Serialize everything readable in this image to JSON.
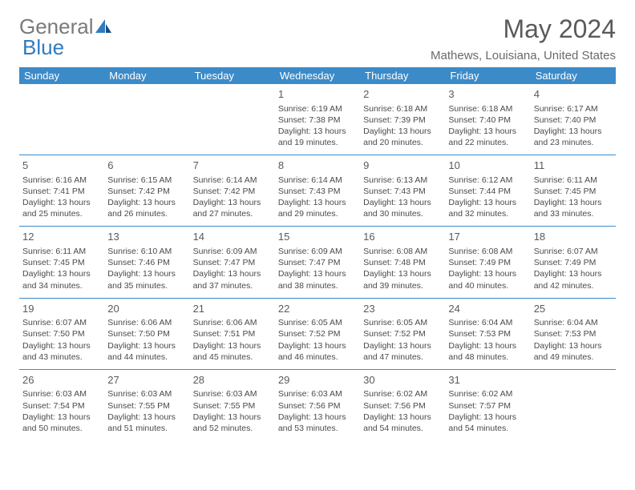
{
  "logo": {
    "text1": "General",
    "text2": "Blue"
  },
  "title": "May 2024",
  "location": "Mathews, Louisiana, United States",
  "colors": {
    "header_bg": "#3b8bc9",
    "header_text": "#ffffff",
    "logo_gray": "#7a7a7a",
    "logo_blue": "#2f7bbf",
    "body_text": "#4a4a4a",
    "title_text": "#5a5a5a"
  },
  "day_headers": [
    "Sunday",
    "Monday",
    "Tuesday",
    "Wednesday",
    "Thursday",
    "Friday",
    "Saturday"
  ],
  "weeks": [
    [
      null,
      null,
      null,
      {
        "n": "1",
        "sr": "6:19 AM",
        "ss": "7:38 PM",
        "dl": "13 hours and 19 minutes."
      },
      {
        "n": "2",
        "sr": "6:18 AM",
        "ss": "7:39 PM",
        "dl": "13 hours and 20 minutes."
      },
      {
        "n": "3",
        "sr": "6:18 AM",
        "ss": "7:40 PM",
        "dl": "13 hours and 22 minutes."
      },
      {
        "n": "4",
        "sr": "6:17 AM",
        "ss": "7:40 PM",
        "dl": "13 hours and 23 minutes."
      }
    ],
    [
      {
        "n": "5",
        "sr": "6:16 AM",
        "ss": "7:41 PM",
        "dl": "13 hours and 25 minutes."
      },
      {
        "n": "6",
        "sr": "6:15 AM",
        "ss": "7:42 PM",
        "dl": "13 hours and 26 minutes."
      },
      {
        "n": "7",
        "sr": "6:14 AM",
        "ss": "7:42 PM",
        "dl": "13 hours and 27 minutes."
      },
      {
        "n": "8",
        "sr": "6:14 AM",
        "ss": "7:43 PM",
        "dl": "13 hours and 29 minutes."
      },
      {
        "n": "9",
        "sr": "6:13 AM",
        "ss": "7:43 PM",
        "dl": "13 hours and 30 minutes."
      },
      {
        "n": "10",
        "sr": "6:12 AM",
        "ss": "7:44 PM",
        "dl": "13 hours and 32 minutes."
      },
      {
        "n": "11",
        "sr": "6:11 AM",
        "ss": "7:45 PM",
        "dl": "13 hours and 33 minutes."
      }
    ],
    [
      {
        "n": "12",
        "sr": "6:11 AM",
        "ss": "7:45 PM",
        "dl": "13 hours and 34 minutes."
      },
      {
        "n": "13",
        "sr": "6:10 AM",
        "ss": "7:46 PM",
        "dl": "13 hours and 35 minutes."
      },
      {
        "n": "14",
        "sr": "6:09 AM",
        "ss": "7:47 PM",
        "dl": "13 hours and 37 minutes."
      },
      {
        "n": "15",
        "sr": "6:09 AM",
        "ss": "7:47 PM",
        "dl": "13 hours and 38 minutes."
      },
      {
        "n": "16",
        "sr": "6:08 AM",
        "ss": "7:48 PM",
        "dl": "13 hours and 39 minutes."
      },
      {
        "n": "17",
        "sr": "6:08 AM",
        "ss": "7:49 PM",
        "dl": "13 hours and 40 minutes."
      },
      {
        "n": "18",
        "sr": "6:07 AM",
        "ss": "7:49 PM",
        "dl": "13 hours and 42 minutes."
      }
    ],
    [
      {
        "n": "19",
        "sr": "6:07 AM",
        "ss": "7:50 PM",
        "dl": "13 hours and 43 minutes."
      },
      {
        "n": "20",
        "sr": "6:06 AM",
        "ss": "7:50 PM",
        "dl": "13 hours and 44 minutes."
      },
      {
        "n": "21",
        "sr": "6:06 AM",
        "ss": "7:51 PM",
        "dl": "13 hours and 45 minutes."
      },
      {
        "n": "22",
        "sr": "6:05 AM",
        "ss": "7:52 PM",
        "dl": "13 hours and 46 minutes."
      },
      {
        "n": "23",
        "sr": "6:05 AM",
        "ss": "7:52 PM",
        "dl": "13 hours and 47 minutes."
      },
      {
        "n": "24",
        "sr": "6:04 AM",
        "ss": "7:53 PM",
        "dl": "13 hours and 48 minutes."
      },
      {
        "n": "25",
        "sr": "6:04 AM",
        "ss": "7:53 PM",
        "dl": "13 hours and 49 minutes."
      }
    ],
    [
      {
        "n": "26",
        "sr": "6:03 AM",
        "ss": "7:54 PM",
        "dl": "13 hours and 50 minutes."
      },
      {
        "n": "27",
        "sr": "6:03 AM",
        "ss": "7:55 PM",
        "dl": "13 hours and 51 minutes."
      },
      {
        "n": "28",
        "sr": "6:03 AM",
        "ss": "7:55 PM",
        "dl": "13 hours and 52 minutes."
      },
      {
        "n": "29",
        "sr": "6:03 AM",
        "ss": "7:56 PM",
        "dl": "13 hours and 53 minutes."
      },
      {
        "n": "30",
        "sr": "6:02 AM",
        "ss": "7:56 PM",
        "dl": "13 hours and 54 minutes."
      },
      {
        "n": "31",
        "sr": "6:02 AM",
        "ss": "7:57 PM",
        "dl": "13 hours and 54 minutes."
      },
      null
    ]
  ],
  "labels": {
    "sunrise": "Sunrise:",
    "sunset": "Sunset:",
    "daylight": "Daylight:"
  }
}
